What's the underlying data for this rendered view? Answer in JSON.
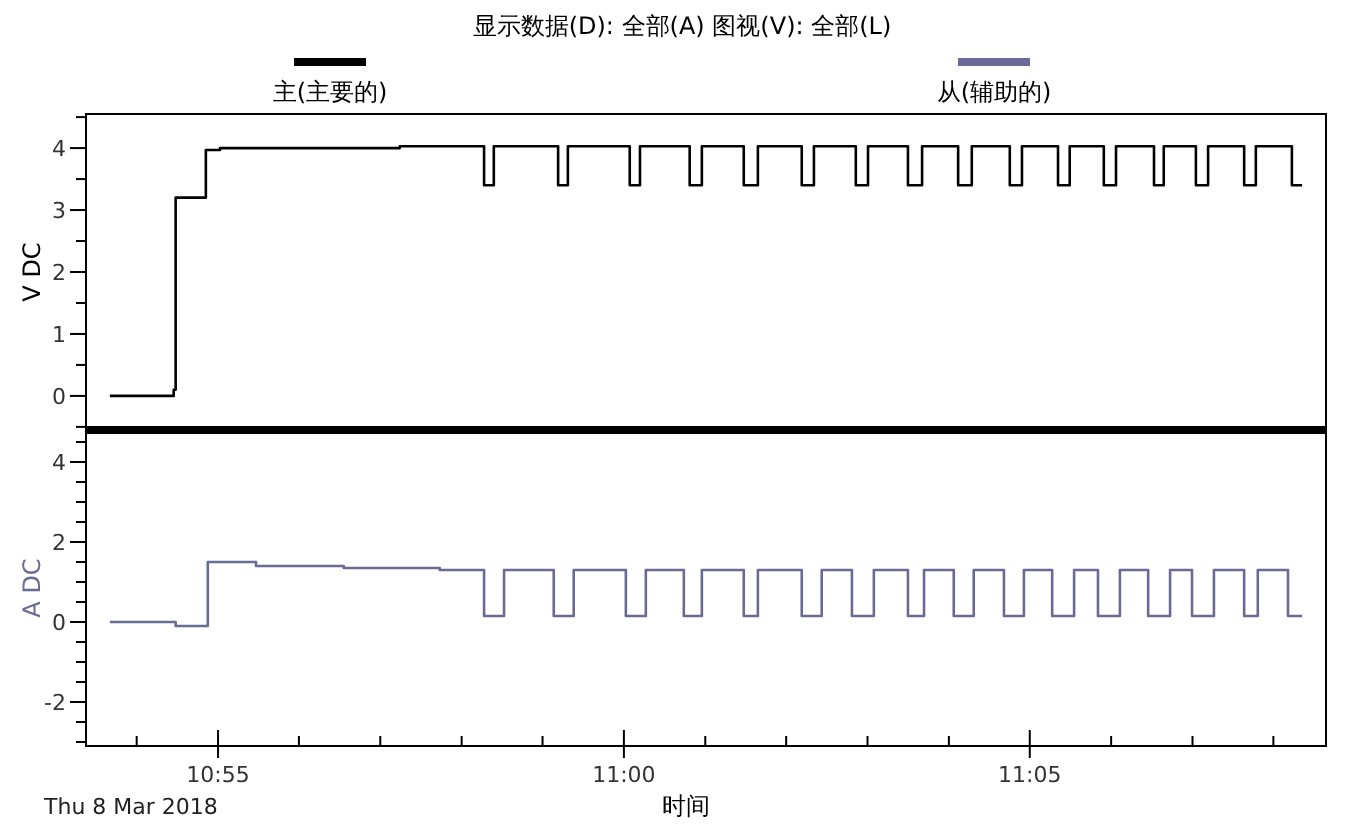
{
  "chart_data": [
    {
      "type": "step",
      "title": "显示数据(D): 全部(A)   图视(V): 全部(L)",
      "ylabel": "V DC",
      "legend": "top",
      "grid": false,
      "tick_labels": "y",
      "xlim": [
        10.8896,
        11.1441
      ],
      "ylim": [
        -0.55,
        4.55
      ],
      "yticks": [
        0,
        {
          "value": 0.5,
          "label": null
        },
        1,
        {
          "value": 1.5,
          "label": null
        },
        2,
        {
          "value": 2.5,
          "label": null
        },
        3,
        {
          "value": 3.5,
          "label": null
        },
        4,
        {
          "value": 4.5,
          "label": null
        },
        {
          "value": -0.5,
          "label": null
        }
      ],
      "series": [
        {
          "name": "主(主要的)",
          "color": "#000000",
          "x": [
            10.8945,
            10.9076,
            10.908,
            10.9142,
            10.9171,
            10.954,
            10.9713,
            10.9733,
            10.9865,
            10.9885,
            11.0012,
            11.0033,
            11.0135,
            11.016,
            11.0246,
            11.0275,
            11.0365,
            11.039,
            11.0476,
            11.0501,
            11.0583,
            11.0612,
            11.0686,
            11.0714,
            11.0792,
            11.0817,
            11.0891,
            11.0915,
            11.0985,
            11.101,
            11.1088,
            11.1108,
            11.1174,
            11.1199,
            11.1273,
            11.1297,
            11.1371,
            11.1392
          ],
          "values": [
            0,
            0.1,
            3.2,
            3.97,
            4.0,
            4.03,
            3.4,
            4.03,
            3.4,
            4.03,
            3.4,
            4.03,
            3.4,
            4.03,
            3.4,
            4.03,
            3.4,
            4.03,
            3.4,
            4.03,
            3.4,
            4.03,
            3.4,
            4.03,
            3.4,
            4.03,
            3.4,
            4.03,
            3.4,
            4.03,
            3.4,
            4.03,
            3.4,
            4.03,
            3.4,
            4.03,
            3.4,
            3.4
          ]
        }
      ]
    },
    {
      "type": "step",
      "xlabel": "时间",
      "ylabel": "A DC",
      "legend": "top",
      "grid": false,
      "annotations": [
        "Thu 8 Mar 2018"
      ],
      "xlim": [
        10.8896,
        11.1441
      ],
      "ylim": [
        -3.1,
        4.8
      ],
      "xticks": [
        {
          "value": 10.9,
          "label": null
        },
        {
          "value": 10.9167,
          "label": "10:55"
        },
        {
          "value": 10.9333,
          "label": null
        },
        {
          "value": 10.95,
          "label": null
        },
        {
          "value": 10.9667,
          "label": null
        },
        {
          "value": 10.9833,
          "label": null
        },
        {
          "value": 11.0,
          "label": "11:00"
        },
        {
          "value": 11.0167,
          "label": null
        },
        {
          "value": 11.0333,
          "label": null
        },
        {
          "value": 11.05,
          "label": null
        },
        {
          "value": 11.0667,
          "label": null
        },
        {
          "value": 11.0833,
          "label": "11:05"
        },
        {
          "value": 11.1,
          "label": null
        },
        {
          "value": 11.1167,
          "label": null
        },
        {
          "value": 11.1333,
          "label": null
        }
      ],
      "yticks": [
        -2,
        0,
        2,
        4,
        {
          "value": -3,
          "label": null
        },
        {
          "value": -2.5,
          "label": null
        },
        {
          "value": -1.5,
          "label": null
        },
        {
          "value": -1,
          "label": null
        },
        {
          "value": -0.5,
          "label": null
        },
        {
          "value": 0.5,
          "label": null
        },
        {
          "value": 1,
          "label": null
        },
        {
          "value": 1.5,
          "label": null
        },
        {
          "value": 2.5,
          "label": null
        },
        {
          "value": 3,
          "label": null
        },
        {
          "value": 3.5,
          "label": null
        },
        {
          "value": 4.5,
          "label": null
        }
      ],
      "series": [
        {
          "name": "从(辅助的)",
          "color": "#6a6a96",
          "x": [
            10.8945,
            10.908,
            10.9146,
            10.9245,
            10.9425,
            10.9622,
            10.9713,
            10.9754,
            10.9856,
            10.9897,
            11.0004,
            11.0045,
            11.0123,
            11.016,
            11.0246,
            11.0275,
            11.0365,
            11.0406,
            11.0468,
            11.0513,
            11.0583,
            11.0616,
            11.0677,
            11.0718,
            11.078,
            11.0821,
            11.0879,
            11.0924,
            11.0973,
            11.1018,
            11.1076,
            11.1121,
            11.1166,
            11.1211,
            11.1273,
            11.1301,
            11.1363,
            11.1392
          ],
          "values": [
            0,
            -0.1,
            1.5,
            1.4,
            1.35,
            1.3,
            0.15,
            1.3,
            0.15,
            1.3,
            0.15,
            1.3,
            0.15,
            1.3,
            0.15,
            1.3,
            0.15,
            1.3,
            0.15,
            1.3,
            0.15,
            1.3,
            0.15,
            1.3,
            0.15,
            1.3,
            0.15,
            1.3,
            0.15,
            1.3,
            0.15,
            1.3,
            0.15,
            1.3,
            0.15,
            1.3,
            0.15,
            0.15
          ]
        }
      ]
    }
  ]
}
